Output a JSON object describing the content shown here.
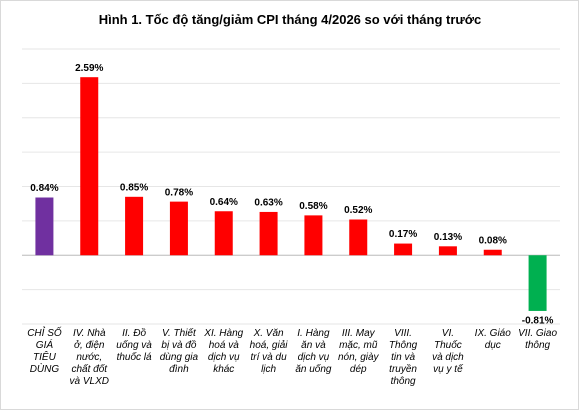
{
  "chart_data": {
    "type": "bar",
    "title": "Hình 1. Tốc độ tăng/giảm CPI tháng 4/2026 so với tháng trước",
    "categories": [
      "CHỈ SỐ GIÁ TIÊU DÙNG",
      "IV. Nhà ở, điện nước, chất đốt và VLXD",
      "II. Đồ uống và thuốc lá",
      "V. Thiết bị và đồ dùng gia đình",
      "XI. Hàng hoá và dịch vụ khác",
      "X. Văn hoá, giải trí và du lịch",
      "I. Hàng ăn và dịch vụ ăn uống",
      "III. May mặc, mũ nón, giày dép",
      "VIII. Thông tin và truyền thông",
      "VI. Thuốc và dịch vụ y tế",
      "IX. Giáo dục",
      "VII. Giao thông"
    ],
    "values": [
      0.84,
      2.59,
      0.85,
      0.78,
      0.64,
      0.63,
      0.58,
      0.52,
      0.17,
      0.13,
      0.08,
      -0.81
    ],
    "value_labels": [
      "0.84%",
      "2.59%",
      "0.85%",
      "0.78%",
      "0.64%",
      "0.63%",
      "0.58%",
      "0.52%",
      "0.17%",
      "0.13%",
      "0.08%",
      "-0.81%"
    ],
    "colors": [
      "#7030a0",
      "#ff0000",
      "#ff0000",
      "#ff0000",
      "#ff0000",
      "#ff0000",
      "#ff0000",
      "#ff0000",
      "#ff0000",
      "#ff0000",
      "#ff0000",
      "#00b050"
    ],
    "ylim": [
      -1,
      3
    ],
    "yticks": [
      -1,
      -0.5,
      0,
      0.5,
      1,
      1.5,
      2,
      2.5,
      3
    ],
    "grid": true
  }
}
